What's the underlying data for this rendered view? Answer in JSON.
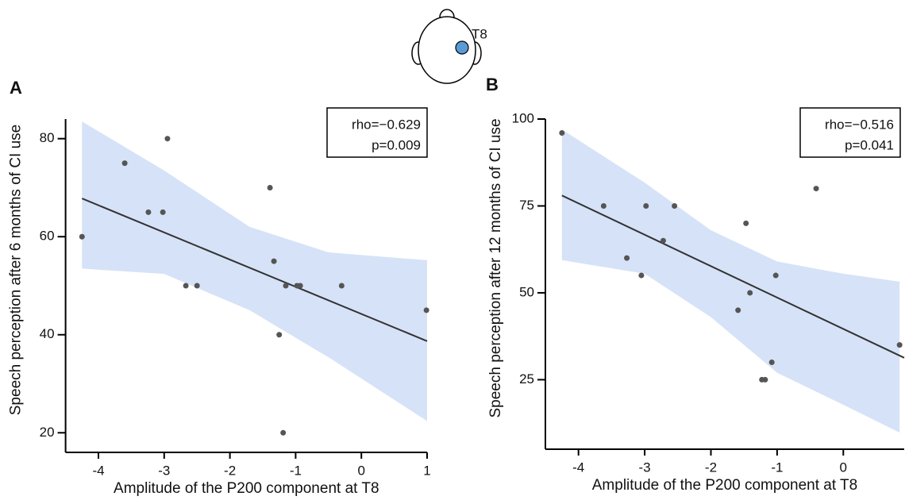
{
  "electrode": "T8",
  "chart_data": [
    {
      "type": "scatter",
      "panel_label": "A",
      "x_label": "Amplitude of the P200 component at T8",
      "y_label": "Speech perception after 6 months of CI use",
      "annotation": [
        "rho=−0.629",
        "p=0.009"
      ],
      "xlim": [
        -4.5,
        1
      ],
      "xticks": [
        -4,
        -3,
        -2,
        -1,
        0,
        1
      ],
      "ylim": [
        16,
        84
      ],
      "yticks": [
        20,
        40,
        60,
        80
      ],
      "point_color": "#555555",
      "x": [
        -4.25,
        -3.6,
        -3.24,
        -3.02,
        -2.95,
        -2.67,
        -2.5,
        -1.39,
        -1.33,
        -1.15,
        -0.98,
        -0.93,
        -1.25,
        -1.19,
        -0.3,
        0.99
      ],
      "values": [
        60,
        75,
        65,
        65,
        80,
        50,
        50,
        70,
        55,
        50,
        50,
        50,
        40,
        20,
        50,
        45
      ],
      "fit": {
        "color": "#333333",
        "x": [
          -4.25,
          1
        ],
        "values": [
          67.8,
          38.7
        ]
      },
      "band": {
        "color": "#d6e2f7",
        "x": [
          -4.25,
          -3,
          -1.7,
          -0.5,
          1
        ],
        "upper": [
          83.5,
          73.5,
          62,
          56.8,
          55.2
        ],
        "lower": [
          53.5,
          52.4,
          45,
          35.4,
          22.4
        ]
      }
    },
    {
      "type": "scatter",
      "panel_label": "B",
      "x_label": "Amplitude of the P200 component at T8",
      "y_label": "Speech perception after 12 months of CI use",
      "annotation": [
        "rho=−0.516",
        "p=0.041"
      ],
      "xlim": [
        -4.5,
        0.92
      ],
      "xticks": [
        -4,
        -3,
        -2,
        -1,
        0
      ],
      "ylim": [
        5,
        100
      ],
      "yticks": [
        25,
        50,
        75,
        100
      ],
      "point_color": "#555555",
      "x": [
        -4.25,
        -3.62,
        -3.27,
        -3.05,
        -2.98,
        -2.55,
        -2.72,
        -1.47,
        -1.41,
        -1.59,
        -1.02,
        -1.08,
        -1.23,
        -1.18,
        -0.41,
        0.85
      ],
      "values": [
        96,
        75,
        60,
        55,
        75,
        75,
        65,
        70,
        50,
        45,
        55,
        30,
        25,
        25,
        80,
        35
      ],
      "fit": {
        "color": "#333333",
        "x": [
          -4.25,
          0.92
        ],
        "values": [
          78,
          31.3
        ]
      },
      "band": {
        "color": "#d6e2f7",
        "x": [
          -4.25,
          -3,
          -2,
          -1,
          0,
          0.85
        ],
        "upper": [
          97,
          81.7,
          68,
          59,
          55.5,
          53.2
        ],
        "lower": [
          59.4,
          55.5,
          43,
          27,
          17.8,
          9.8
        ]
      }
    }
  ]
}
